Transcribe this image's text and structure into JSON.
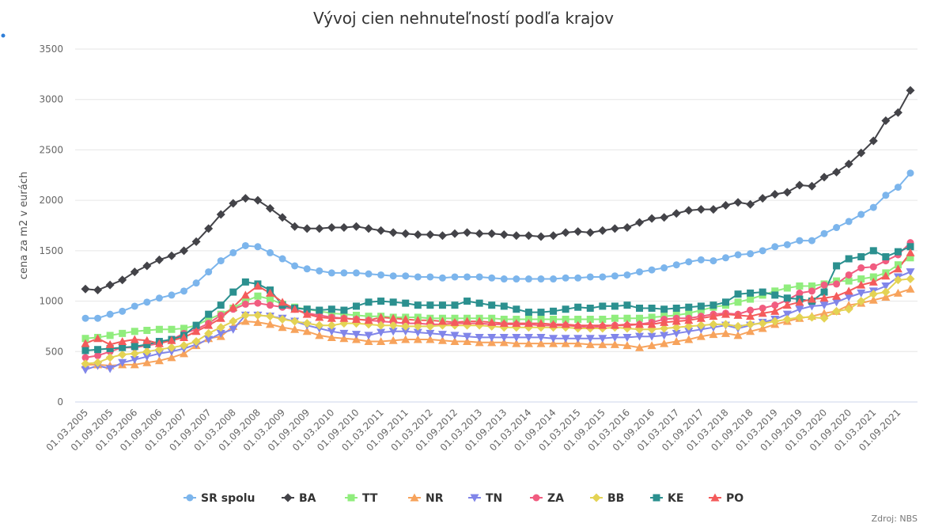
{
  "chart_data": {
    "type": "line",
    "title": "Vývoj cien nehnuteľností podľa krajov",
    "y_label": "cena za m2 v eurách",
    "source": "Zdroj: NBS",
    "ylim": [
      0,
      3500
    ],
    "yticks": [
      0,
      500,
      1000,
      1500,
      2000,
      2500,
      3000,
      3500
    ],
    "grid": true,
    "legend": "bottom",
    "categories": [
      "01.03.2005",
      null,
      "01.09.2005",
      null,
      "01.03.2006",
      null,
      "01.09.2006",
      null,
      "01.03.2007",
      null,
      "01.09.2007",
      null,
      "01.03.2008",
      null,
      "01.09.2008",
      null,
      "01.03.2009",
      null,
      "01.09.2009",
      null,
      "01.03.2010",
      null,
      "01.09.2010",
      null,
      "01.03.2011",
      null,
      "01.09.2011",
      null,
      "01.03.2012",
      null,
      "01.09.2012",
      null,
      "01.03.2013",
      null,
      "01.09.2013",
      null,
      "01.03.2014",
      null,
      "01.09.2014",
      null,
      "01.03.2015",
      null,
      "01.09.2015",
      null,
      "01.03.2016",
      null,
      "01.09.2016",
      null,
      "01.03.2017",
      null,
      "01.09.2017",
      null,
      "01.03.2018",
      null,
      "01.09.2018",
      null,
      "01.03.2019",
      null,
      "01.09.2019",
      null,
      "01.03.2020",
      null,
      "01.09.2020",
      null,
      "01.03.2021",
      null,
      "01.09.2021",
      null
    ],
    "series": [
      {
        "name": "SR spolu",
        "color": "#7cb5ec",
        "marker": "circle",
        "values": [
          830,
          830,
          870,
          900,
          950,
          990,
          1030,
          1060,
          1100,
          1180,
          1290,
          1400,
          1480,
          1550,
          1540,
          1480,
          1420,
          1350,
          1320,
          1300,
          1280,
          1280,
          1280,
          1270,
          1260,
          1250,
          1250,
          1240,
          1240,
          1230,
          1240,
          1240,
          1240,
          1230,
          1220,
          1220,
          1220,
          1220,
          1220,
          1230,
          1230,
          1240,
          1240,
          1250,
          1260,
          1290,
          1310,
          1330,
          1360,
          1390,
          1410,
          1400,
          1430,
          1460,
          1470,
          1500,
          1540,
          1560,
          1600,
          1600,
          1670,
          1730,
          1790,
          1860,
          1930,
          2050,
          2130,
          2270
        ]
      },
      {
        "name": "BA",
        "color": "#434348",
        "marker": "diamond",
        "values": [
          1120,
          1110,
          1160,
          1210,
          1290,
          1350,
          1410,
          1450,
          1500,
          1590,
          1720,
          1860,
          1970,
          2020,
          2000,
          1920,
          1830,
          1740,
          1720,
          1720,
          1730,
          1730,
          1740,
          1720,
          1700,
          1680,
          1670,
          1660,
          1660,
          1650,
          1670,
          1680,
          1670,
          1670,
          1660,
          1650,
          1650,
          1640,
          1650,
          1680,
          1690,
          1680,
          1700,
          1720,
          1730,
          1780,
          1820,
          1830,
          1870,
          1900,
          1910,
          1910,
          1950,
          1980,
          1960,
          2020,
          2060,
          2080,
          2150,
          2140,
          2230,
          2280,
          2360,
          2470,
          2590,
          2790,
          2870,
          3090
        ]
      },
      {
        "name": "TT",
        "color": "#90ed7d",
        "marker": "square",
        "values": [
          630,
          640,
          660,
          680,
          700,
          710,
          720,
          720,
          730,
          760,
          820,
          870,
          930,
          1000,
          1050,
          1020,
          970,
          940,
          920,
          900,
          880,
          870,
          860,
          850,
          850,
          840,
          840,
          840,
          830,
          830,
          830,
          830,
          830,
          830,
          820,
          820,
          820,
          820,
          820,
          820,
          820,
          820,
          820,
          830,
          830,
          830,
          840,
          850,
          860,
          880,
          910,
          940,
          960,
          990,
          1020,
          1060,
          1100,
          1130,
          1150,
          1150,
          1170,
          1200,
          1200,
          1220,
          1240,
          1280,
          1360,
          1430
        ]
      },
      {
        "name": "NR",
        "color": "#f7a35c",
        "marker": "triangle",
        "values": [
          370,
          370,
          360,
          370,
          370,
          390,
          410,
          440,
          480,
          560,
          630,
          650,
          750,
          800,
          790,
          770,
          740,
          720,
          700,
          660,
          640,
          630,
          620,
          600,
          600,
          610,
          620,
          620,
          620,
          610,
          600,
          600,
          590,
          590,
          590,
          580,
          580,
          580,
          580,
          580,
          580,
          570,
          570,
          570,
          560,
          540,
          560,
          580,
          600,
          620,
          650,
          670,
          680,
          660,
          700,
          730,
          770,
          800,
          830,
          850,
          880,
          900,
          960,
          980,
          1010,
          1040,
          1080,
          1120
        ]
      },
      {
        "name": "TN",
        "color": "#8085e9",
        "marker": "triangle-down",
        "values": [
          320,
          360,
          330,
          390,
          420,
          450,
          480,
          500,
          530,
          570,
          620,
          680,
          720,
          860,
          860,
          850,
          830,
          800,
          760,
          730,
          700,
          680,
          670,
          660,
          690,
          700,
          700,
          690,
          680,
          670,
          660,
          650,
          640,
          640,
          640,
          640,
          640,
          640,
          630,
          630,
          630,
          630,
          630,
          640,
          640,
          650,
          650,
          660,
          680,
          700,
          720,
          740,
          760,
          730,
          760,
          790,
          820,
          870,
          920,
          950,
          960,
          990,
          1040,
          1080,
          1100,
          1150,
          1240,
          1290
        ]
      },
      {
        "name": "ZA",
        "color": "#f15c80",
        "marker": "circle",
        "values": [
          440,
          460,
          500,
          540,
          540,
          560,
          580,
          620,
          680,
          720,
          780,
          860,
          920,
          970,
          980,
          960,
          940,
          920,
          880,
          860,
          840,
          830,
          820,
          810,
          800,
          790,
          780,
          780,
          770,
          770,
          780,
          780,
          780,
          770,
          770,
          770,
          770,
          760,
          760,
          760,
          750,
          740,
          750,
          760,
          760,
          770,
          790,
          820,
          830,
          830,
          850,
          870,
          880,
          870,
          910,
          930,
          960,
          1010,
          1080,
          1100,
          1160,
          1170,
          1260,
          1330,
          1340,
          1400,
          1460,
          1580
        ]
      },
      {
        "name": "BB",
        "color": "#e4d354",
        "marker": "diamond",
        "values": [
          380,
          390,
          440,
          470,
          480,
          500,
          520,
          540,
          560,
          600,
          680,
          740,
          800,
          860,
          860,
          850,
          820,
          800,
          780,
          760,
          760,
          780,
          780,
          770,
          760,
          760,
          750,
          750,
          750,
          760,
          760,
          760,
          760,
          750,
          740,
          740,
          740,
          740,
          740,
          740,
          730,
          730,
          730,
          740,
          730,
          720,
          720,
          730,
          740,
          750,
          760,
          770,
          770,
          750,
          770,
          780,
          800,
          820,
          840,
          840,
          830,
          900,
          920,
          1000,
          1070,
          1090,
          1210,
          1220
        ]
      },
      {
        "name": "KE",
        "color": "#2b908f",
        "marker": "square",
        "values": [
          510,
          520,
          530,
          540,
          550,
          570,
          600,
          620,
          660,
          760,
          870,
          960,
          1090,
          1190,
          1170,
          1110,
          960,
          930,
          920,
          910,
          920,
          910,
          950,
          990,
          1000,
          990,
          980,
          960,
          960,
          960,
          960,
          1000,
          980,
          960,
          950,
          920,
          890,
          890,
          900,
          920,
          940,
          930,
          950,
          950,
          960,
          930,
          930,
          920,
          930,
          940,
          950,
          960,
          990,
          1070,
          1080,
          1090,
          1060,
          1030,
          1020,
          1000,
          1090,
          1350,
          1420,
          1440,
          1500,
          1440,
          1490,
          1540
        ]
      },
      {
        "name": "PO",
        "color": "#f45b5b",
        "marker": "triangle",
        "values": [
          580,
          630,
          570,
          600,
          620,
          610,
          580,
          610,
          640,
          700,
          760,
          830,
          940,
          1060,
          1150,
          1080,
          990,
          920,
          870,
          840,
          830,
          830,
          820,
          810,
          840,
          830,
          820,
          810,
          810,
          800,
          790,
          800,
          800,
          790,
          780,
          780,
          780,
          780,
          770,
          770,
          760,
          760,
          760,
          760,
          770,
          770,
          770,
          790,
          800,
          810,
          830,
          850,
          870,
          860,
          850,
          880,
          900,
          960,
          990,
          1020,
          1030,
          1050,
          1100,
          1160,
          1190,
          1250,
          1320,
          1480
        ]
      }
    ]
  }
}
